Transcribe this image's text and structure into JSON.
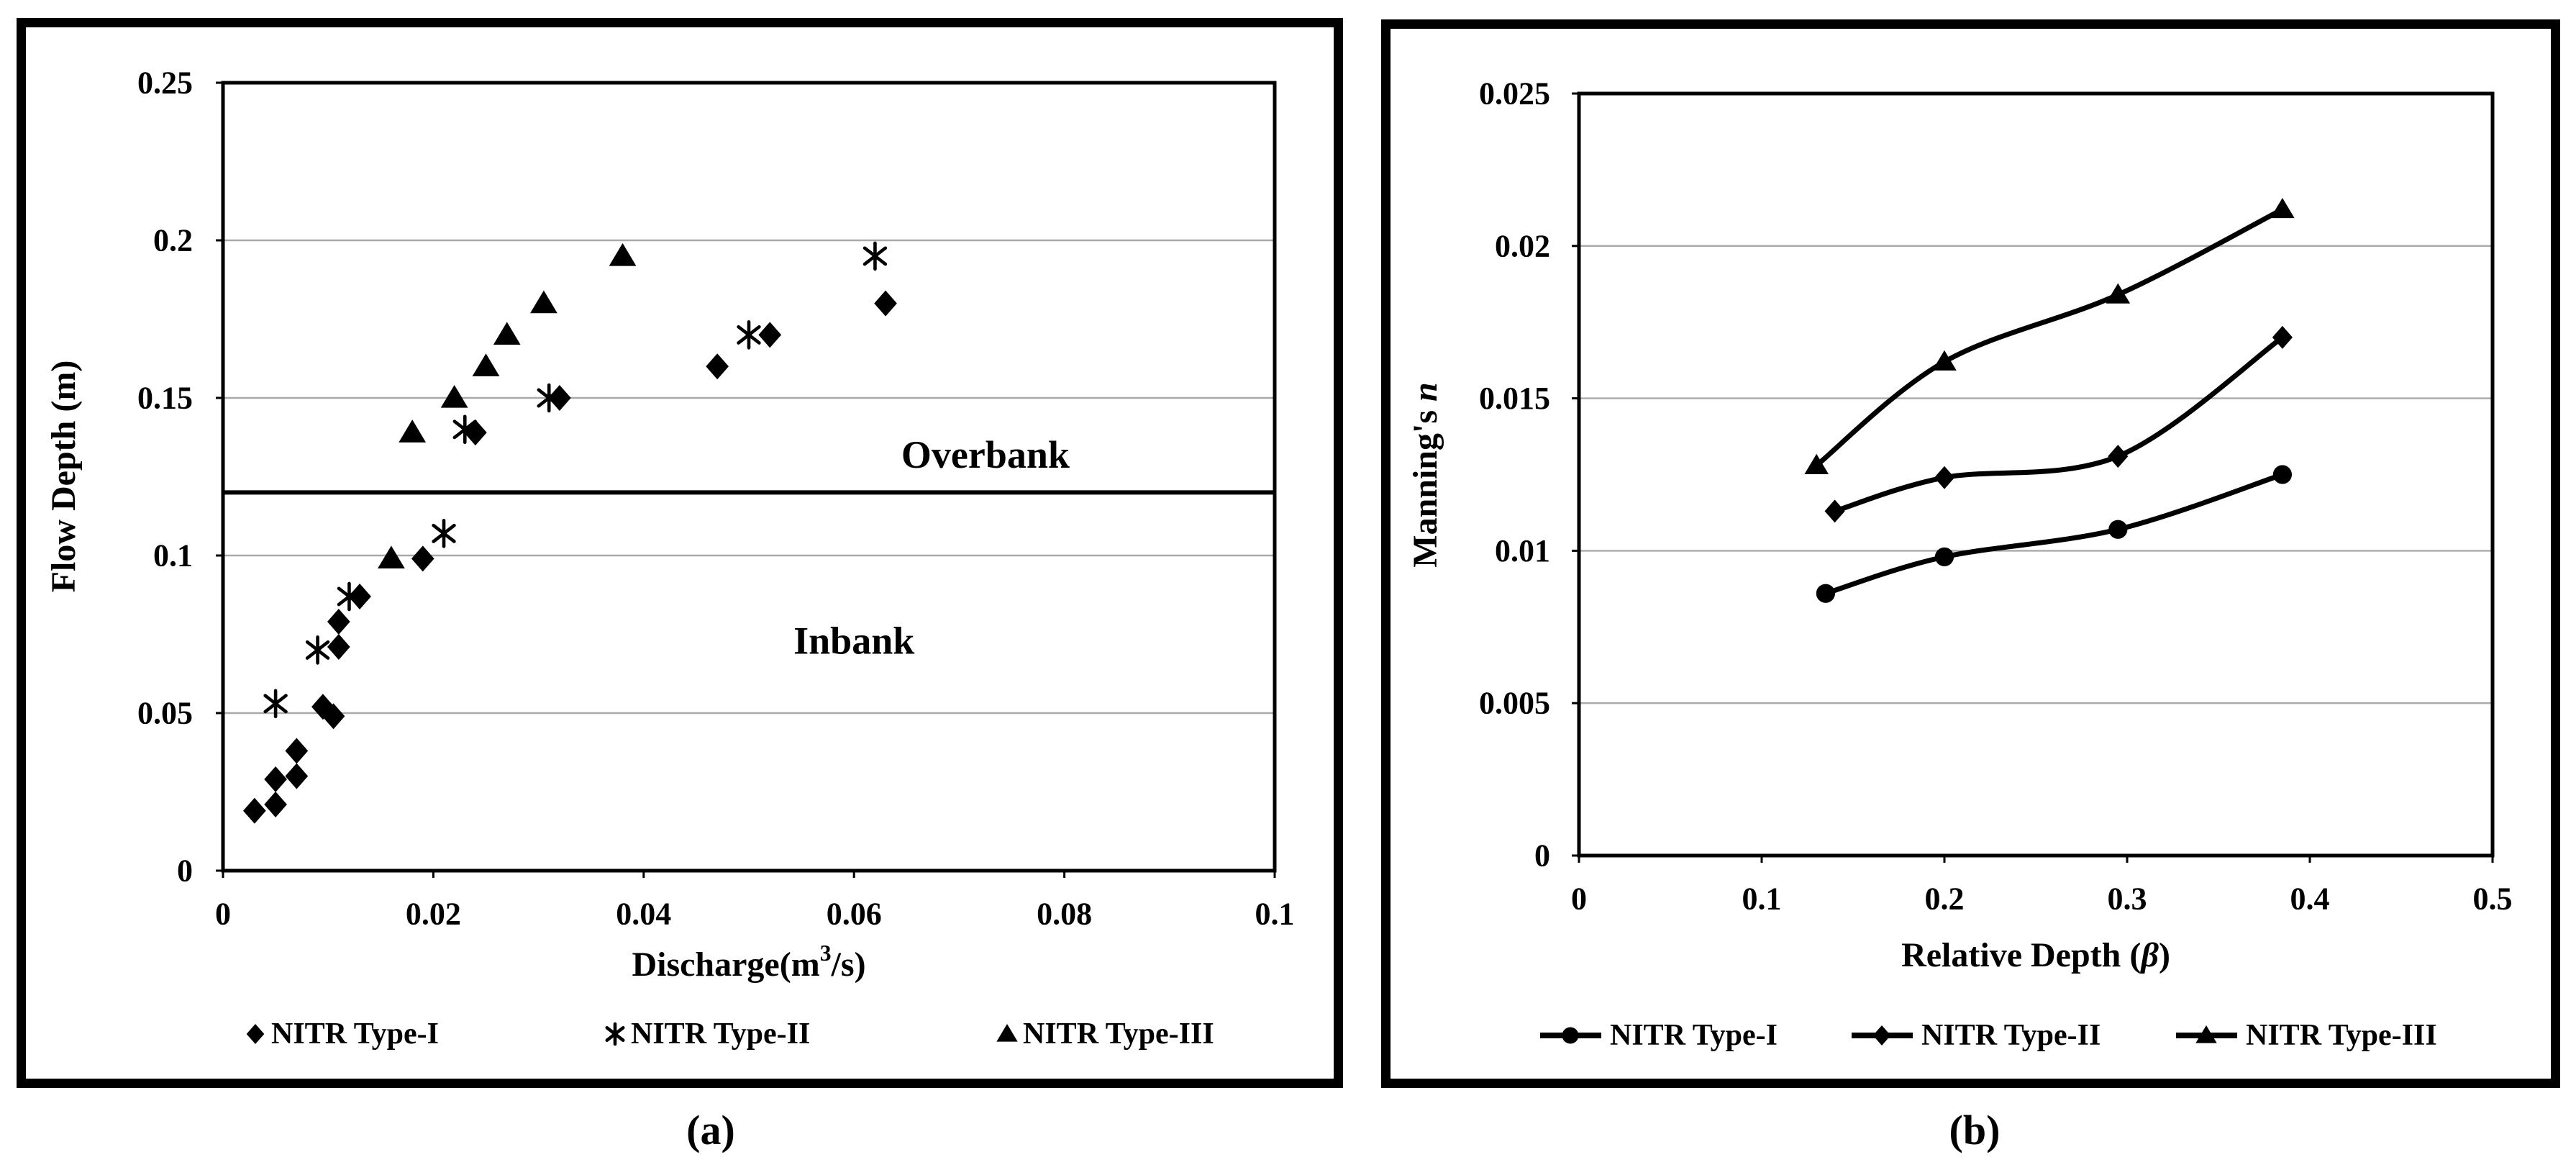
{
  "figure": {
    "panels": [
      {
        "caption": "(a)"
      },
      {
        "caption": "(b)"
      }
    ]
  },
  "colors": {
    "foreground": "#000000",
    "background": "#ffffff",
    "gridline": "#a9a9a9"
  },
  "chart_data": [
    {
      "type": "scatter",
      "title": "",
      "xlabel": "Discharge(m3/s)",
      "xlabel_parts": [
        {
          "text": "Discharge(m",
          "style": "normal"
        },
        {
          "text": "3",
          "style": "superscript"
        },
        {
          "text": "/s)",
          "style": "normal"
        }
      ],
      "ylabel": "Flow Depth (m)",
      "ylabel_parts": [
        {
          "text": "Flow Depth (m)",
          "style": "normal"
        }
      ],
      "xlim": [
        0,
        0.1
      ],
      "ylim": [
        0,
        0.25
      ],
      "xticks": [
        0,
        0.02,
        0.04,
        0.06,
        0.08,
        0.1
      ],
      "yticks": [
        0,
        0.05,
        0.1,
        0.15,
        0.2,
        0.25
      ],
      "grid": "horizontal",
      "legend_position": "bottom",
      "divider_line_y": 0.12,
      "annotations": [
        {
          "text": "Overbank",
          "x": 0.0725,
          "y": 0.132
        },
        {
          "text": "Inbank",
          "x": 0.06,
          "y": 0.073
        }
      ],
      "series": [
        {
          "name": "NITR Type-I",
          "marker": "diamond",
          "points": [
            [
              0.003,
              0.019
            ],
            [
              0.005,
              0.021
            ],
            [
              0.005,
              0.029
            ],
            [
              0.007,
              0.03
            ],
            [
              0.007,
              0.038
            ],
            [
              0.0095,
              0.052
            ],
            [
              0.0105,
              0.049
            ],
            [
              0.011,
              0.071
            ],
            [
              0.011,
              0.079
            ],
            [
              0.013,
              0.087
            ],
            [
              0.019,
              0.099
            ],
            [
              0.024,
              0.139
            ],
            [
              0.032,
              0.15
            ],
            [
              0.047,
              0.16
            ],
            [
              0.052,
              0.17
            ],
            [
              0.063,
              0.18
            ]
          ]
        },
        {
          "name": "NITR Type-II",
          "marker": "asterisk",
          "points": [
            [
              0.005,
              0.053
            ],
            [
              0.009,
              0.07
            ],
            [
              0.012,
              0.087
            ],
            [
              0.021,
              0.107
            ],
            [
              0.023,
              0.14
            ],
            [
              0.031,
              0.15
            ],
            [
              0.05,
              0.17
            ],
            [
              0.062,
              0.195
            ]
          ]
        },
        {
          "name": "NITR Type-III",
          "marker": "triangle",
          "points": [
            [
              0.016,
              0.099
            ],
            [
              0.018,
              0.139
            ],
            [
              0.022,
              0.15
            ],
            [
              0.025,
              0.16
            ],
            [
              0.027,
              0.17
            ],
            [
              0.0305,
              0.18
            ],
            [
              0.038,
              0.195
            ]
          ]
        }
      ]
    },
    {
      "type": "line",
      "title": "",
      "xlabel": "Relative Depth (β)",
      "xlabel_parts": [
        {
          "text": "Relative Depth (",
          "style": "normal"
        },
        {
          "text": "β",
          "style": "italic"
        },
        {
          "text": ")",
          "style": "normal"
        }
      ],
      "ylabel": "Manning's n",
      "ylabel_parts": [
        {
          "text": "Manning's ",
          "style": "normal"
        },
        {
          "text": "n",
          "style": "italic"
        }
      ],
      "xlim": [
        0,
        0.5
      ],
      "ylim": [
        0,
        0.025
      ],
      "xticks": [
        0,
        0.1,
        0.2,
        0.3,
        0.4,
        0.5
      ],
      "yticks": [
        0,
        0.005,
        0.01,
        0.015,
        0.02,
        0.025
      ],
      "grid": "horizontal",
      "legend_position": "bottom",
      "annotations": [],
      "series": [
        {
          "name": "NITR Type-I",
          "marker": "circle",
          "points": [
            [
              0.135,
              0.0086
            ],
            [
              0.2,
              0.0098
            ],
            [
              0.295,
              0.0107
            ],
            [
              0.385,
              0.0125
            ]
          ]
        },
        {
          "name": "NITR Type-II",
          "marker": "diamond",
          "points": [
            [
              0.14,
              0.0113
            ],
            [
              0.2,
              0.0124
            ],
            [
              0.295,
              0.0131
            ],
            [
              0.385,
              0.017
            ]
          ]
        },
        {
          "name": "NITR Type-III",
          "marker": "triangle",
          "points": [
            [
              0.13,
              0.0128
            ],
            [
              0.2,
              0.0162
            ],
            [
              0.295,
              0.0184
            ],
            [
              0.385,
              0.0212
            ]
          ]
        }
      ]
    }
  ]
}
